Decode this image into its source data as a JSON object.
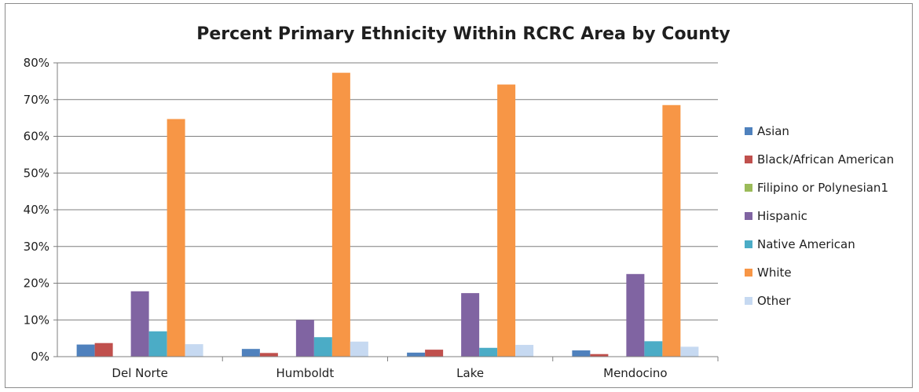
{
  "chart_data": {
    "type": "bar",
    "title": "Percent Primary Ethnicity Within RCRC Area by County",
    "xlabel": "",
    "ylabel": "",
    "ylim": [
      0,
      80
    ],
    "yticks": [
      "0%",
      "10%",
      "20%",
      "30%",
      "40%",
      "50%",
      "60%",
      "70%",
      "80%"
    ],
    "grid": true,
    "legend_position": "right",
    "categories": [
      "Del Norte",
      "Humboldt",
      "Lake",
      "Mendocino"
    ],
    "series": [
      {
        "name": "Asian",
        "color": "#4f81bd",
        "values": [
          3.3,
          2.1,
          1.1,
          1.7
        ]
      },
      {
        "name": "Black/African American",
        "color": "#c0504d",
        "values": [
          3.7,
          1.0,
          1.9,
          0.7
        ]
      },
      {
        "name": "Filipino or Polynesian1",
        "color": "#9bbb59",
        "values": [
          0.0,
          0.0,
          0.0,
          0.0
        ]
      },
      {
        "name": "Hispanic",
        "color": "#8064a2",
        "values": [
          17.8,
          10.0,
          17.3,
          22.5
        ]
      },
      {
        "name": "Native American",
        "color": "#4bacc6",
        "values": [
          6.9,
          5.3,
          2.4,
          4.2
        ]
      },
      {
        "name": "White",
        "color": "#f79646",
        "values": [
          64.7,
          77.3,
          74.1,
          68.5
        ]
      },
      {
        "name": "Other",
        "color": "#c6d9f1",
        "values": [
          3.4,
          4.1,
          3.2,
          2.7
        ]
      }
    ]
  }
}
